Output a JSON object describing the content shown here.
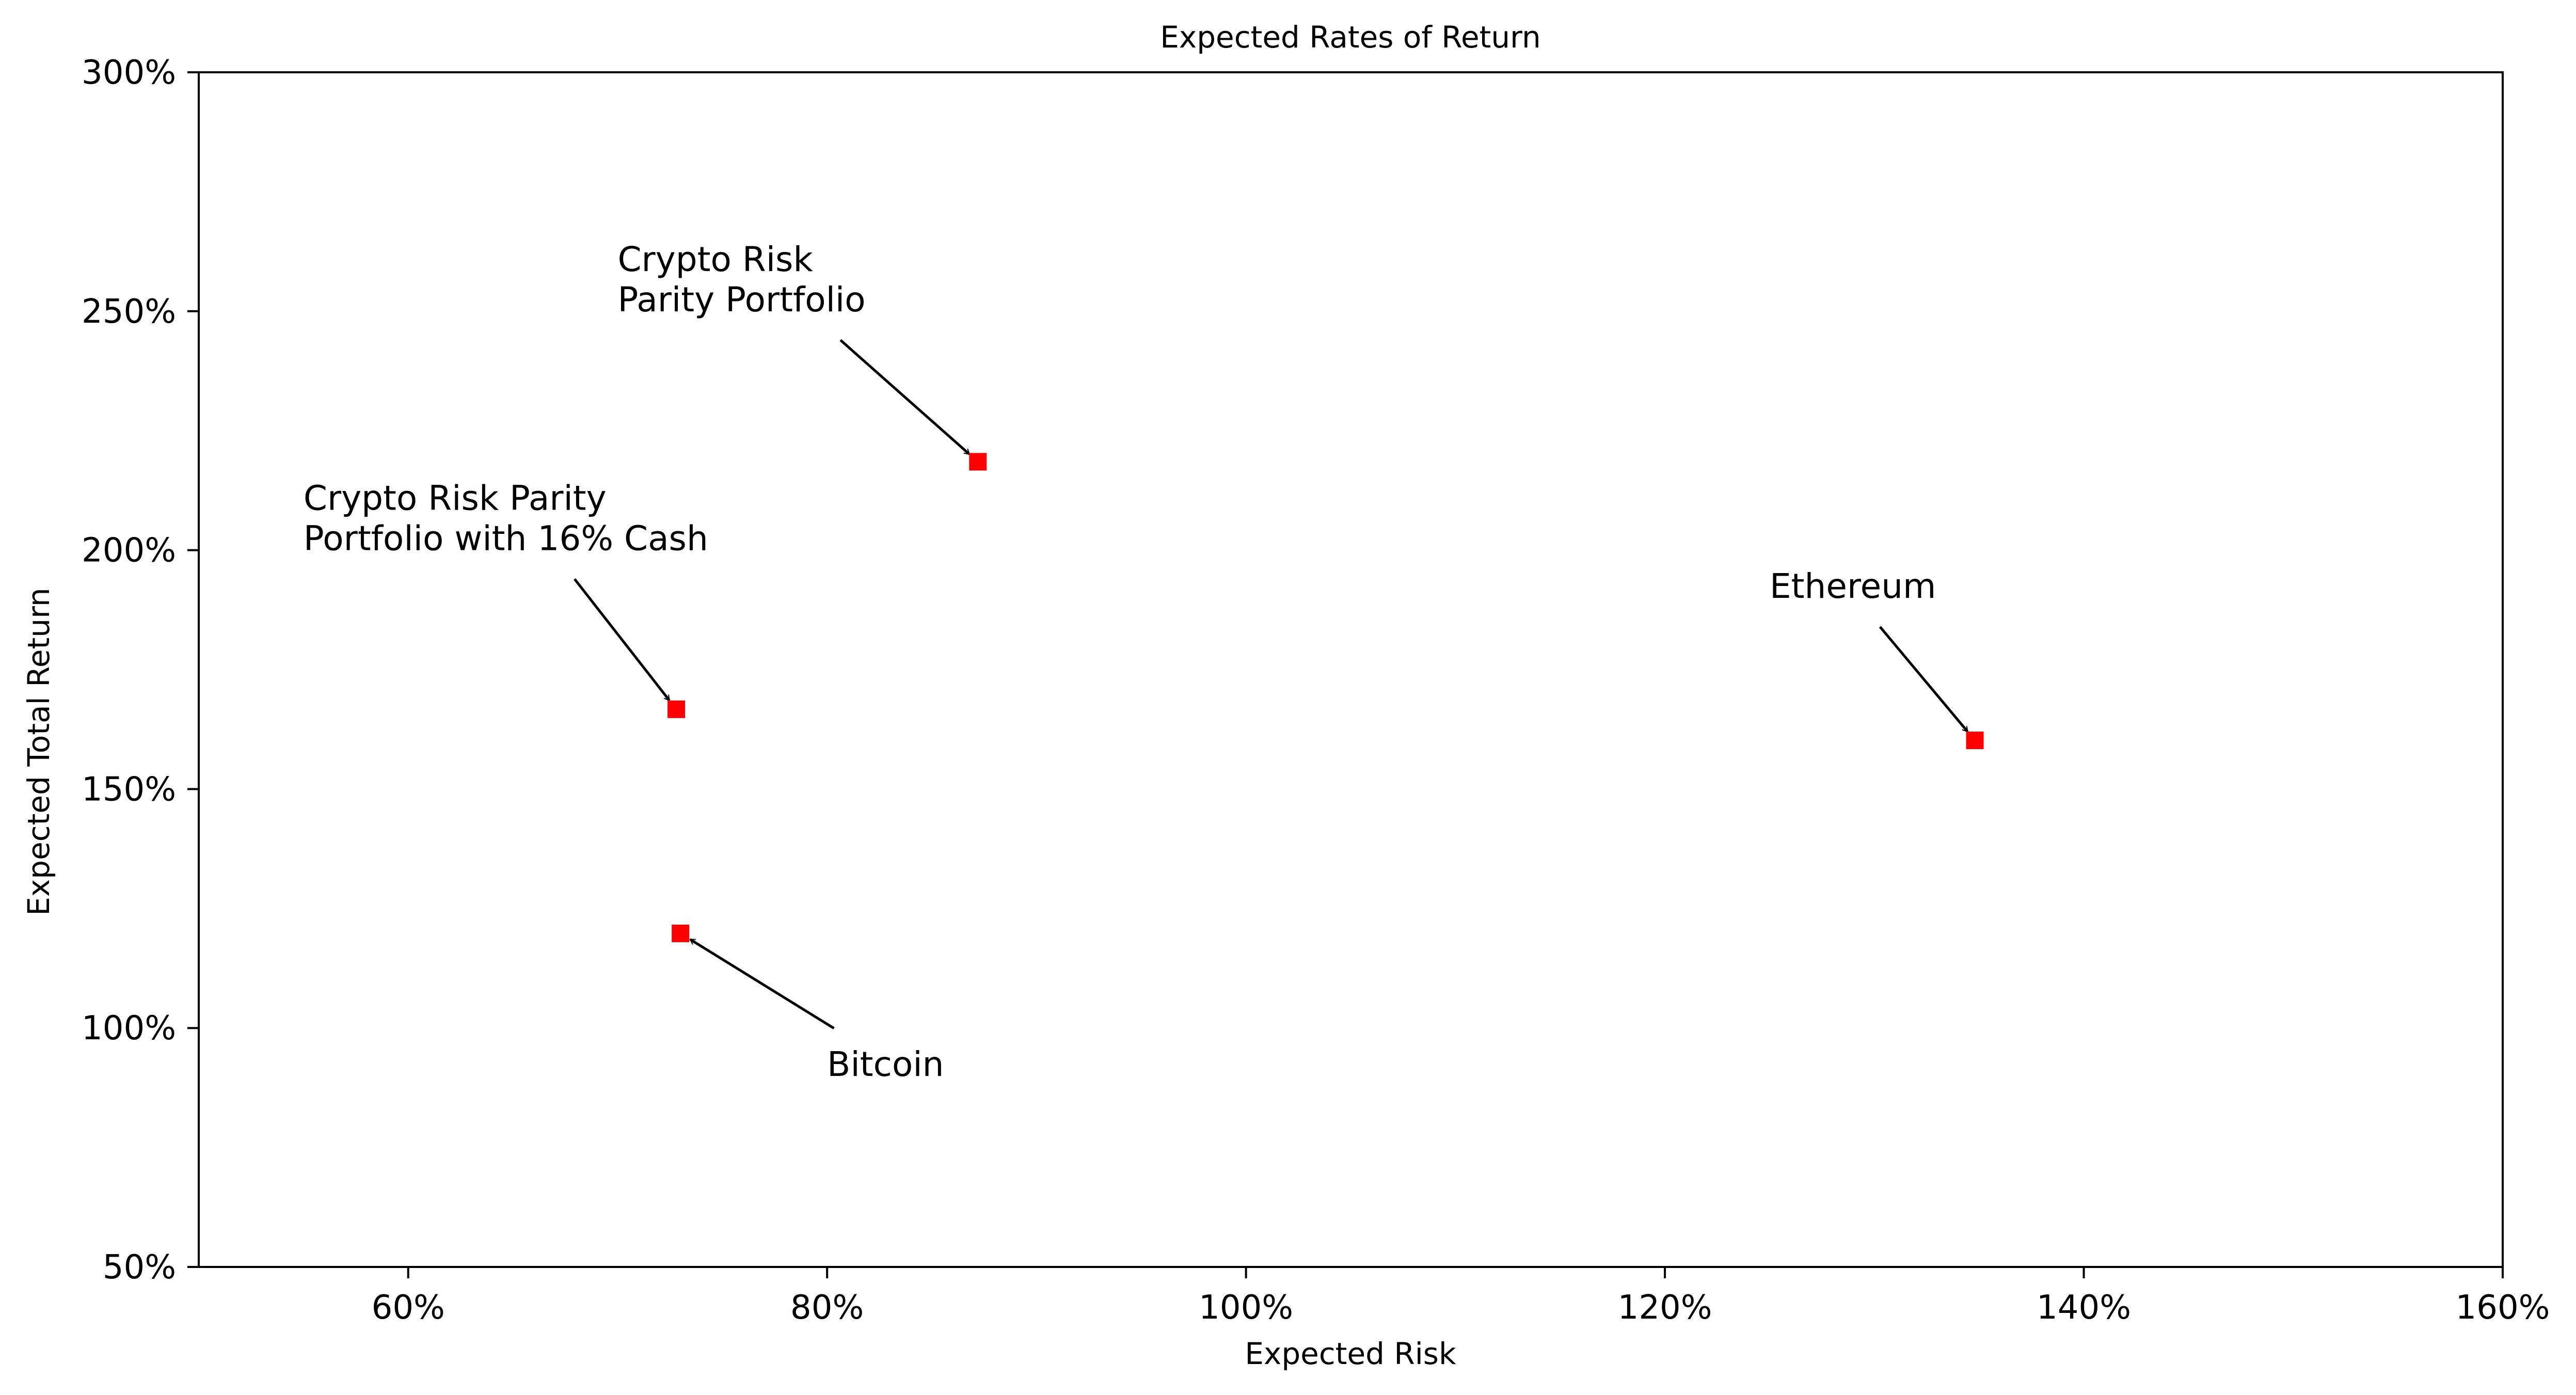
{
  "chart_data": {
    "type": "scatter",
    "title": "Expected Rates of Return",
    "xlabel": "Expected Risk",
    "ylabel": "Expected Total Return",
    "xlim": [
      50,
      160
    ],
    "ylim": [
      50,
      300
    ],
    "x_ticks": [
      {
        "value": 60,
        "label": "60%"
      },
      {
        "value": 80,
        "label": "80%"
      },
      {
        "value": 100,
        "label": "100%"
      },
      {
        "value": 120,
        "label": "120%"
      },
      {
        "value": 140,
        "label": "140%"
      },
      {
        "value": 160,
        "label": "160%"
      }
    ],
    "y_ticks": [
      {
        "value": 50,
        "label": "50%"
      },
      {
        "value": 100,
        "label": "100%"
      },
      {
        "value": 150,
        "label": "150%"
      },
      {
        "value": 200,
        "label": "200%"
      },
      {
        "value": 250,
        "label": "250%"
      },
      {
        "value": 300,
        "label": "300%"
      }
    ],
    "grid": false,
    "marker_color": "#ff0000",
    "marker": "square",
    "points": [
      {
        "x": 87.2,
        "y": 218.5,
        "label_lines": [
          "Crypto Risk",
          "Parity Portfolio"
        ],
        "text_x": 70,
        "text_y": 250
      },
      {
        "x": 72.8,
        "y": 166.7,
        "label_lines": [
          "Crypto Risk Parity",
          "Portfolio with 16% Cash"
        ],
        "text_x": 55,
        "text_y": 200
      },
      {
        "x": 134.8,
        "y": 160.2,
        "label_lines": [
          "Ethereum"
        ],
        "text_x": 125,
        "text_y": 190
      },
      {
        "x": 73.0,
        "y": 119.8,
        "label_lines": [
          "Bitcoin"
        ],
        "text_x": 80,
        "text_y": 90
      }
    ]
  }
}
